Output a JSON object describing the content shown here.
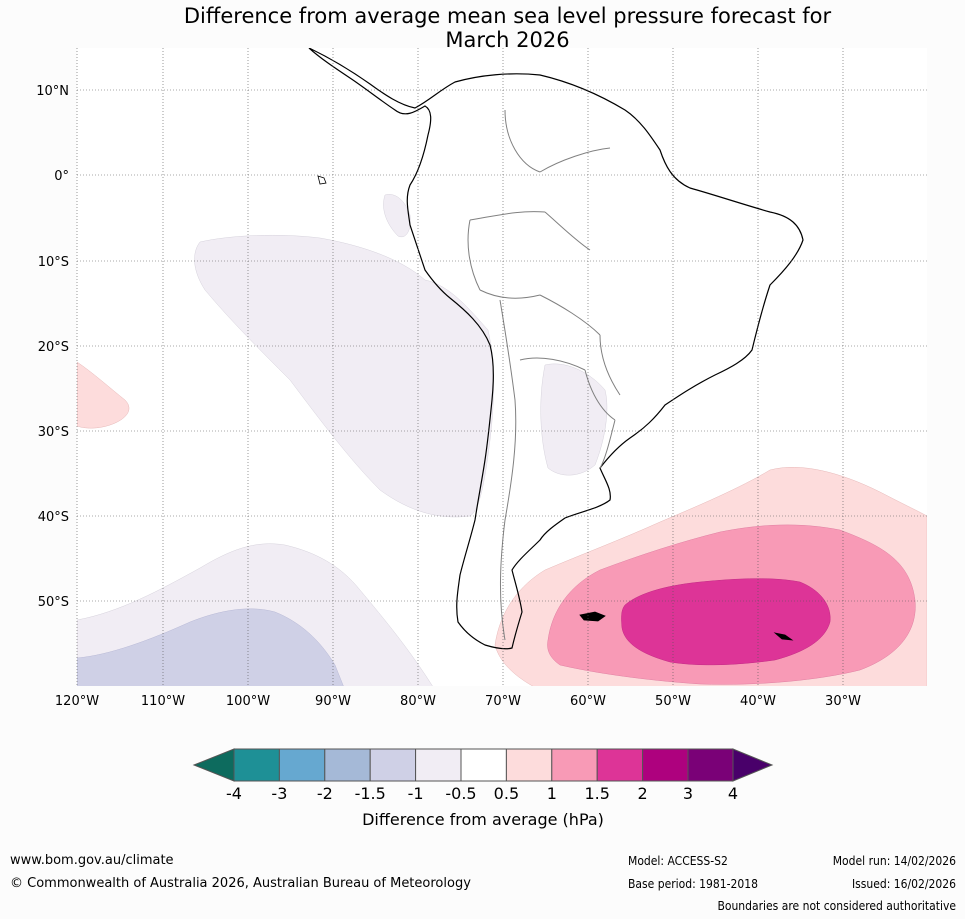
{
  "title": {
    "line1": "Difference from average mean sea level pressure forecast for",
    "line2": "March 2026"
  },
  "map": {
    "lat_labels": [
      "10°N",
      "0°",
      "10°S",
      "20°S",
      "30°S",
      "40°S",
      "50°S"
    ],
    "lon_labels": [
      "120°W",
      "110°W",
      "100°W",
      "90°W",
      "80°W",
      "70°W",
      "60°W",
      "50°W",
      "40°W",
      "30°W"
    ]
  },
  "colorbar": {
    "ticks": [
      "-4",
      "-3",
      "-2",
      "-1.5",
      "-1",
      "-0.5",
      "0.5",
      "1",
      "1.5",
      "2",
      "3",
      "4"
    ],
    "colors": [
      "#1e9096",
      "#66a8d0",
      "#a5b9d7",
      "#cfd0e6",
      "#f1edf4",
      "#ffffff",
      "#fddcdc",
      "#f89ab6",
      "#dd3497",
      "#ae017e",
      "#7a0177"
    ],
    "low_color": "#0d6b5e",
    "high_color": "#49006a",
    "label": "Difference from average (hPa)"
  },
  "footer": {
    "website": "www.bom.gov.au/climate",
    "copyright": "© Commonwealth of Australia 2026, Australian Bureau of Meteorology",
    "model": "Model: ACCESS-S2",
    "base_period": "Base period: 1981-2018",
    "model_run": "Model run: 14/02/2026",
    "issued": "Issued: 16/02/2026",
    "disclaimer": "Boundaries are not considered authoritative"
  }
}
